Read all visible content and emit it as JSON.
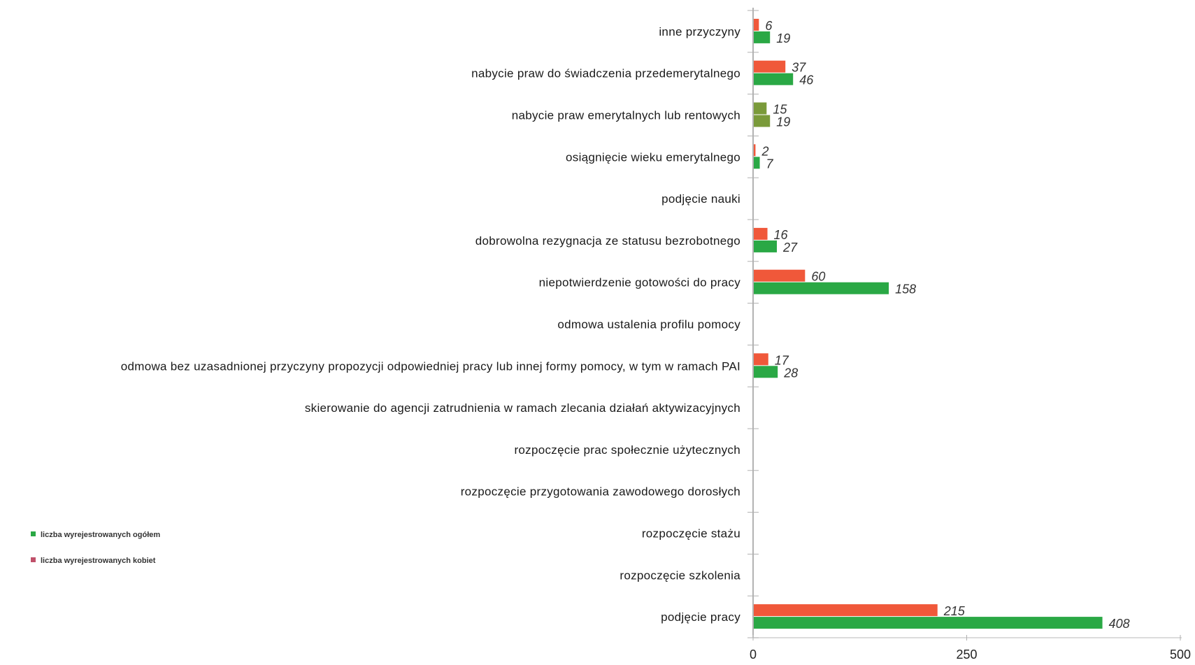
{
  "chart_data": {
    "type": "bar",
    "orientation": "horizontal",
    "categories": [
      "inne przyczyny",
      "nabycie praw do świadczenia przedemerytalnego",
      "nabycie praw emerytalnych lub rentowych",
      "osiągnięcie wieku emerytalnego",
      "podjęcie nauki",
      "dobrowolna rezygnacja ze statusu bezrobotnego",
      "niepotwierdzenie gotowości do pracy",
      "odmowa ustalenia profilu pomocy",
      "odmowa bez uzasadnionej przyczyny propozycji odpowiedniej pracy lub innej formy pomocy, w tym w ramach PAI",
      "skierowanie do agencji zatrudnienia w ramach zlecania działań aktywizacyjnych",
      "rozpoczęcie prac społecznie użytecznych",
      "rozpoczęcie przygotowania zawodowego dorosłych",
      "rozpoczęcie stażu",
      "rozpoczęcie szkolenia",
      "podjęcie pracy"
    ],
    "series": [
      {
        "name": "liczba wyrejestrowanych kobiet",
        "color": "#f0583a",
        "values": [
          6,
          37,
          15,
          2,
          null,
          16,
          60,
          null,
          17,
          null,
          null,
          null,
          null,
          null,
          215
        ],
        "labels": [
          "6",
          "37",
          "15",
          "2",
          "",
          "16",
          "60",
          "",
          "17",
          "",
          "",
          "",
          "",
          "",
          "215"
        ]
      },
      {
        "name": "liczba wyrejestrowanych ogółem",
        "color": "#2aa845",
        "values": [
          19,
          46,
          19,
          7,
          null,
          27,
          158,
          null,
          28,
          null,
          null,
          null,
          null,
          null,
          408
        ],
        "labels": [
          "19",
          "46",
          "19",
          "7",
          "",
          "27",
          "158",
          "",
          "28",
          "",
          "",
          "",
          "",
          "",
          "408"
        ]
      }
    ],
    "xlim": [
      0,
      500
    ],
    "xticks": [
      "0",
      "250",
      "500"
    ],
    "grid": false,
    "legend_position": "left"
  },
  "legend": [
    {
      "label": "liczba wyrejestrowanych ogółem",
      "color": "#2aa845"
    },
    {
      "label": "liczba wyrejestrowanych kobiet",
      "color": "#c0506a"
    }
  ]
}
